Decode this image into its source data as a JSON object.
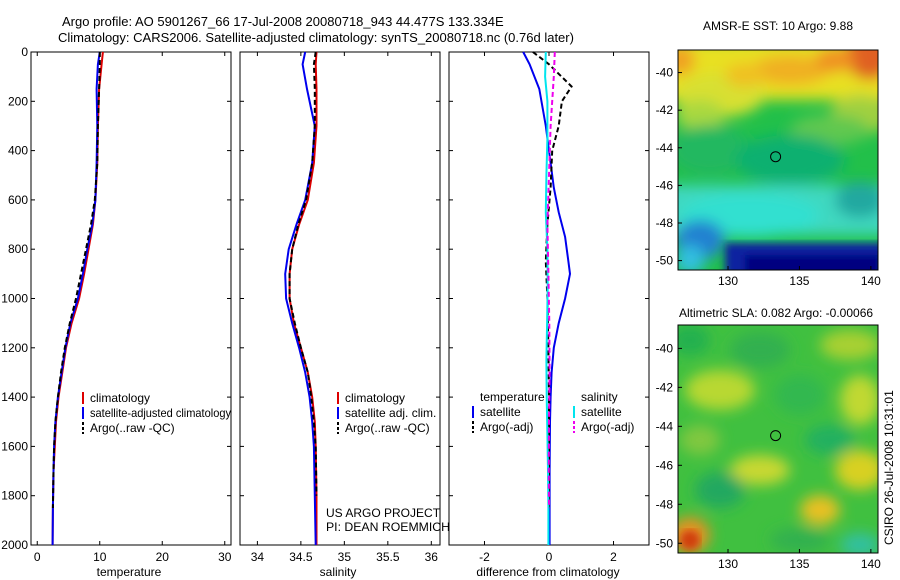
{
  "title_line1": "Argo profile: AO 5901267_66 17-Jul-2008 20080718_943 44.477S 133.334E",
  "title_line2": "Climatology: CARS2006. Satellite-adjusted climatology: synTS_20080718.nc (0.76d later)",
  "side_stamp": "CSIRO 26-Jul-2008 10:31:01",
  "project_line1": "US ARGO PROJECT",
  "project_line2": "PI: DEAN ROEMMICH",
  "colors": {
    "climatology": "#dd0000",
    "satellite": "#0000ee",
    "argo": "#000000",
    "salinity_sat": "#00e5ee",
    "salinity_argo": "#ee00ee"
  },
  "chart_data": [
    {
      "type": "line",
      "xlabel": "temperature",
      "ylabel": "",
      "xlim": [
        -1,
        31
      ],
      "ylim": [
        2000,
        0
      ],
      "y_reversed": true,
      "xticks": [
        0,
        10,
        20,
        30
      ],
      "yticks": [
        0,
        200,
        400,
        600,
        800,
        1000,
        1200,
        1400,
        1600,
        1800,
        2000
      ],
      "legend": [
        "climatology",
        "satellite-adjusted climatology",
        "Argo(..raw -QC)"
      ],
      "legend_position": "lower-right",
      "series": [
        {
          "name": "climatology",
          "color": "#dd0000",
          "dash": "solid",
          "x": [
            10.5,
            10.3,
            9.9,
            9.7,
            9.6,
            9.3,
            8.9,
            8.2,
            7.5,
            6.7,
            5.5,
            4.6,
            4.0,
            3.4,
            3.0,
            2.8,
            2.6,
            2.5,
            2.45
          ],
          "y": [
            0,
            50,
            150,
            300,
            450,
            600,
            700,
            800,
            900,
            1000,
            1100,
            1200,
            1300,
            1400,
            1500,
            1600,
            1700,
            1850,
            2000
          ]
        },
        {
          "name": "satellite-adjusted climatology",
          "color": "#0000ee",
          "dash": "solid",
          "x": [
            10.0,
            9.7,
            9.5,
            9.6,
            9.5,
            9.3,
            8.8,
            8.0,
            7.3,
            6.5,
            5.3,
            4.5,
            3.9,
            3.3,
            2.9,
            2.7,
            2.6,
            2.5,
            2.45
          ],
          "y": [
            0,
            50,
            150,
            300,
            450,
            600,
            700,
            800,
            900,
            1000,
            1100,
            1200,
            1300,
            1400,
            1500,
            1600,
            1700,
            1850,
            2000
          ]
        },
        {
          "name": "Argo(..raw -QC)",
          "color": "#000000",
          "dash": "dashed",
          "x": [
            10.0,
            10.0,
            9.9,
            9.7,
            9.6,
            9.2,
            8.6,
            7.8,
            7.0,
            6.2,
            5.2,
            4.4,
            3.8,
            3.3,
            2.9,
            2.7,
            2.6,
            2.5
          ],
          "y": [
            0,
            50,
            150,
            300,
            450,
            600,
            700,
            800,
            900,
            1000,
            1100,
            1200,
            1300,
            1400,
            1500,
            1600,
            1700,
            1850
          ]
        }
      ]
    },
    {
      "type": "line",
      "xlabel": "salinity",
      "ylabel": "",
      "xlim": [
        33.8,
        36.1
      ],
      "ylim": [
        2000,
        0
      ],
      "y_reversed": true,
      "xticks": [
        34,
        34.5,
        35,
        35.5,
        36
      ],
      "yticks": [
        0,
        200,
        400,
        600,
        800,
        1000,
        1200,
        1400,
        1600,
        1800,
        2000
      ],
      "legend": [
        "climatology",
        "satellite adj. clim.",
        "Argo(..raw -QC)"
      ],
      "legend_position": "lower-right",
      "series": [
        {
          "name": "climatology",
          "color": "#dd0000",
          "dash": "solid",
          "x": [
            34.68,
            34.67,
            34.68,
            34.68,
            34.65,
            34.58,
            34.48,
            34.4,
            34.37,
            34.37,
            34.42,
            34.5,
            34.58,
            34.63,
            34.66,
            34.67,
            34.68,
            34.68
          ],
          "y": [
            0,
            50,
            150,
            300,
            450,
            600,
            700,
            800,
            900,
            1000,
            1100,
            1200,
            1300,
            1400,
            1500,
            1600,
            1800,
            2000
          ]
        },
        {
          "name": "satellite adj. clim.",
          "color": "#0000ee",
          "dash": "solid",
          "x": [
            34.55,
            34.52,
            34.57,
            34.66,
            34.63,
            34.55,
            34.45,
            34.36,
            34.32,
            34.33,
            34.4,
            34.48,
            34.55,
            34.6,
            34.63,
            34.65,
            34.66,
            34.67
          ],
          "y": [
            0,
            50,
            150,
            300,
            450,
            600,
            700,
            800,
            900,
            1000,
            1100,
            1200,
            1300,
            1400,
            1500,
            1600,
            1800,
            2000
          ]
        },
        {
          "name": "Argo(..raw -QC)",
          "color": "#000000",
          "dash": "dashed",
          "x": [
            34.67,
            34.65,
            34.66,
            34.66,
            34.63,
            34.56,
            34.47,
            34.4,
            34.37,
            34.37,
            34.43,
            34.5,
            34.58,
            34.62,
            34.65,
            34.67,
            34.68
          ],
          "y": [
            0,
            50,
            150,
            300,
            450,
            600,
            700,
            800,
            900,
            1000,
            1100,
            1200,
            1300,
            1400,
            1500,
            1600,
            1800
          ]
        }
      ]
    },
    {
      "type": "line",
      "xlabel": "difference from climatology",
      "ylabel": "",
      "xlim": [
        -3.1,
        3.1
      ],
      "ylim": [
        2000,
        0
      ],
      "y_reversed": true,
      "xticks": [
        -2,
        0,
        2
      ],
      "yticks": [
        0,
        200,
        400,
        600,
        800,
        1000,
        1200,
        1400,
        1600,
        1800,
        2000
      ],
      "legend_groups": [
        {
          "header": "temperature",
          "entries": [
            "satellite",
            "Argo(-adj)"
          ]
        },
        {
          "header": "salinity",
          "entries": [
            "satellite",
            "Argo(-adj)"
          ]
        }
      ],
      "legend_position": "lower",
      "series": [
        {
          "name": "temperature satellite",
          "color": "#0000ee",
          "dash": "solid",
          "x": [
            -0.8,
            -0.6,
            -0.3,
            -0.1,
            0.05,
            0.15,
            0.3,
            0.5,
            0.6,
            0.65,
            0.5,
            0.3,
            0.15,
            0.08,
            0.05,
            0.03,
            0.02,
            0.02
          ],
          "y": [
            0,
            50,
            150,
            300,
            450,
            550,
            650,
            750,
            850,
            900,
            1000,
            1100,
            1200,
            1300,
            1400,
            1500,
            1700,
            2000
          ]
        },
        {
          "name": "temperature Argo(-adj)",
          "color": "#000000",
          "dash": "dashed",
          "x": [
            -0.5,
            0.0,
            0.7,
            0.4,
            0.3,
            0.1,
            0.05,
            -0.05,
            -0.1,
            -0.05,
            -0.02,
            0.0,
            0.0,
            0.0
          ],
          "y": [
            0,
            50,
            140,
            200,
            300,
            400,
            550,
            700,
            850,
            1000,
            1200,
            1400,
            1600,
            1850
          ]
        },
        {
          "name": "salinity satellite",
          "color": "#00e5ee",
          "dash": "solid",
          "x": [
            -0.1,
            -0.12,
            -0.05,
            -0.05,
            -0.08,
            -0.1,
            -0.05,
            -0.04,
            -0.06,
            -0.08,
            -0.07,
            -0.05,
            -0.03,
            -0.02,
            -0.02
          ],
          "y": [
            0,
            100,
            200,
            350,
            500,
            650,
            800,
            950,
            1100,
            1250,
            1400,
            1550,
            1700,
            1850,
            2000
          ]
        },
        {
          "name": "salinity Argo(-adj)",
          "color": "#ee00ee",
          "dash": "dashed",
          "x": [
            0.18,
            0.15,
            0.05,
            0.0,
            -0.05,
            -0.02,
            0.01,
            0.02,
            0.0,
            -0.01,
            0.0
          ],
          "y": [
            0,
            100,
            300,
            500,
            700,
            900,
            1100,
            1300,
            1500,
            1700,
            1850
          ]
        }
      ]
    },
    {
      "type": "heatmap",
      "title": "AMSR-E SST: 10 Argo: 9.88",
      "xlim": [
        126.5,
        140.5
      ],
      "ylim": [
        -50.5,
        -38.8
      ],
      "xticks": [
        130,
        135,
        140
      ],
      "yticks": [
        -40,
        -42,
        -44,
        -46,
        -48,
        -50
      ],
      "marker": {
        "x": 133.334,
        "y": -44.477
      }
    },
    {
      "type": "heatmap",
      "title": "Altimetric SLA: 0.082 Argo: -0.00066",
      "xlim": [
        126.5,
        140.5
      ],
      "ylim": [
        -50.5,
        -38.8
      ],
      "xticks": [
        130,
        135,
        140
      ],
      "yticks": [
        -40,
        -42,
        -44,
        -46,
        -48,
        -50
      ],
      "marker": {
        "x": 133.334,
        "y": -44.477
      }
    }
  ]
}
